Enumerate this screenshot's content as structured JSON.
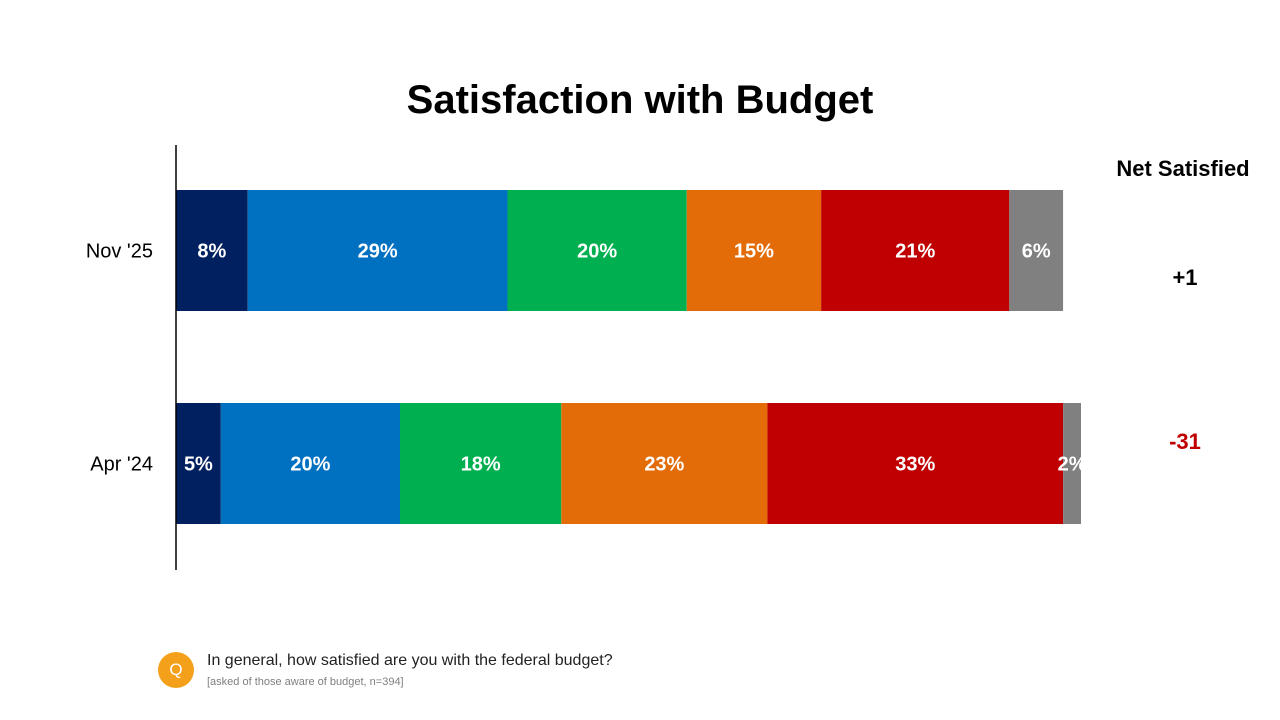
{
  "chart_data": {
    "type": "bar",
    "orientation": "horizontal",
    "stacked": true,
    "title": "Satisfaction with Budget",
    "categories": [
      "Nov '25",
      "Apr '24"
    ],
    "series": [
      {
        "name": "segment-1",
        "color": "#002060",
        "values": [
          8,
          5
        ],
        "labels": [
          "8%",
          "5%"
        ]
      },
      {
        "name": "segment-2",
        "color": "#0070C0",
        "values": [
          29,
          20
        ],
        "labels": [
          "29%",
          "20%"
        ]
      },
      {
        "name": "segment-3",
        "color": "#00B050",
        "values": [
          20,
          18
        ],
        "labels": [
          "20%",
          "18%"
        ]
      },
      {
        "name": "segment-4",
        "color": "#E36C09",
        "values": [
          15,
          23
        ],
        "labels": [
          "15%",
          "23%"
        ]
      },
      {
        "name": "segment-5",
        "color": "#C00000",
        "values": [
          21,
          33
        ],
        "labels": [
          "21%",
          "33%"
        ]
      },
      {
        "name": "segment-6",
        "color": "#808080",
        "values": [
          6,
          2
        ],
        "labels": [
          "6%",
          "2%"
        ]
      }
    ],
    "xlim": [
      0,
      101
    ],
    "net_satisfied": {
      "header": "Net Satisfied",
      "values": [
        "+1",
        "-31"
      ],
      "colors": [
        "#000000",
        "#C00000"
      ]
    }
  },
  "footer": {
    "badge": "Q",
    "question": "In general, how satisfied are you with the federal budget?",
    "note": "[asked of those aware of budget, n=394]"
  }
}
